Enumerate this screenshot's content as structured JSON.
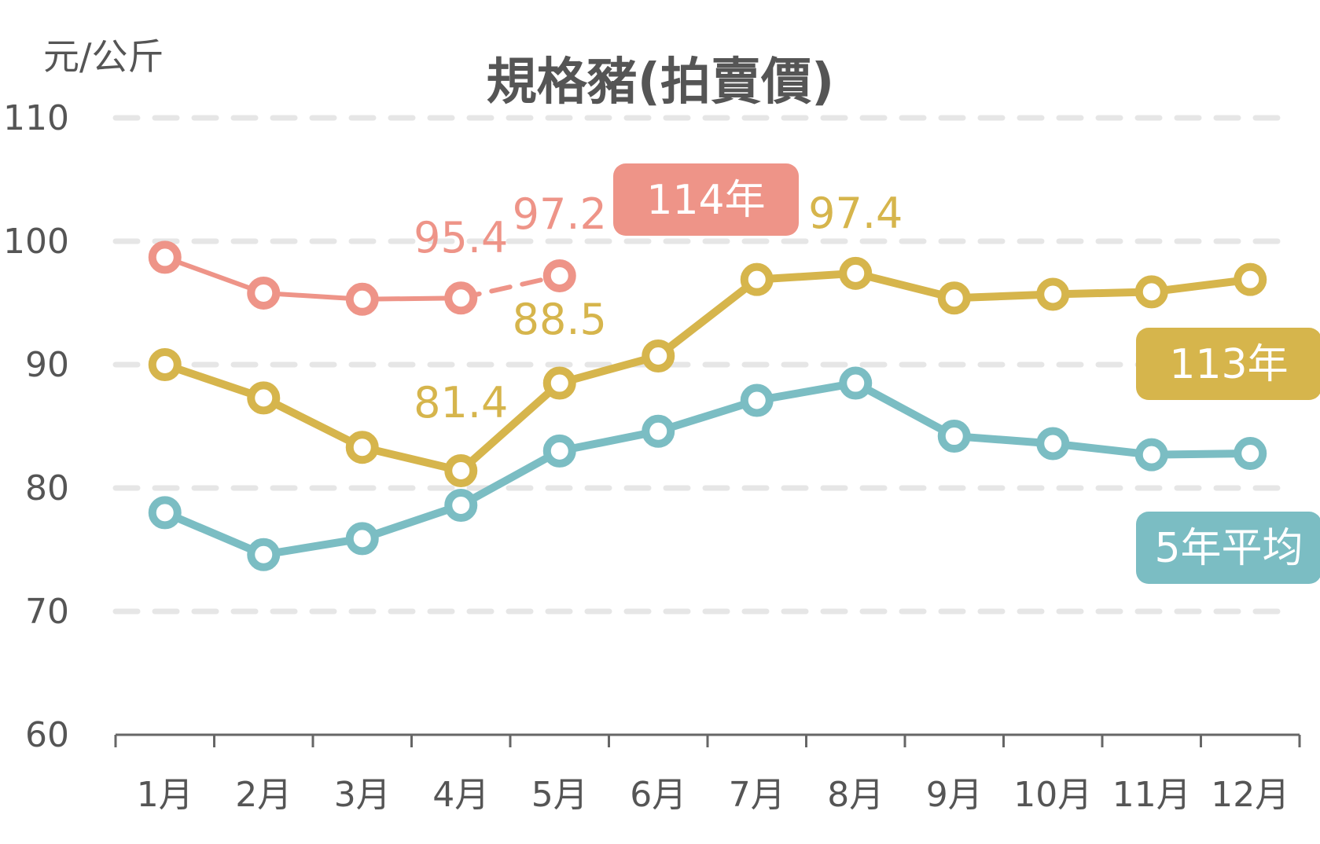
{
  "chart_data": {
    "type": "line",
    "title": "規格豬(拍賣價)",
    "ylabel": "元/公斤",
    "xlabel": "",
    "ylim": [
      60,
      110
    ],
    "yticks": [
      "60",
      "70",
      "80",
      "90",
      "100",
      "110"
    ],
    "categories": [
      "1月",
      "2月",
      "3月",
      "4月",
      "5月",
      "6月",
      "7月",
      "8月",
      "9月",
      "10月",
      "11月",
      "12月"
    ],
    "grid": true,
    "series": [
      {
        "name": "5年平均",
        "color": "#7bbdc3",
        "values": [
          78.0,
          74.6,
          75.9,
          78.6,
          83.0,
          84.6,
          87.1,
          88.5,
          84.2,
          83.6,
          82.7,
          82.8
        ]
      },
      {
        "name": "113年",
        "color": "#d6b54c",
        "values": [
          90.0,
          87.3,
          83.3,
          81.4,
          88.5,
          90.7,
          96.9,
          97.4,
          95.4,
          95.7,
          95.9,
          96.9
        ]
      },
      {
        "name": "114年",
        "color": "#ee9488",
        "values": [
          98.7,
          95.8,
          95.3,
          95.4,
          97.2,
          null,
          null,
          null,
          null,
          null,
          null,
          null
        ]
      }
    ],
    "data_labels": [
      {
        "series": "114年",
        "month": "4月",
        "text": "95.4"
      },
      {
        "series": "114年",
        "month": "5月",
        "text": "97.2"
      },
      {
        "series": "113年",
        "month": "4月",
        "text": "81.4"
      },
      {
        "series": "113年",
        "month": "5月",
        "text": "88.5"
      },
      {
        "series": "113年",
        "month": "8月",
        "text": "97.4"
      }
    ]
  }
}
